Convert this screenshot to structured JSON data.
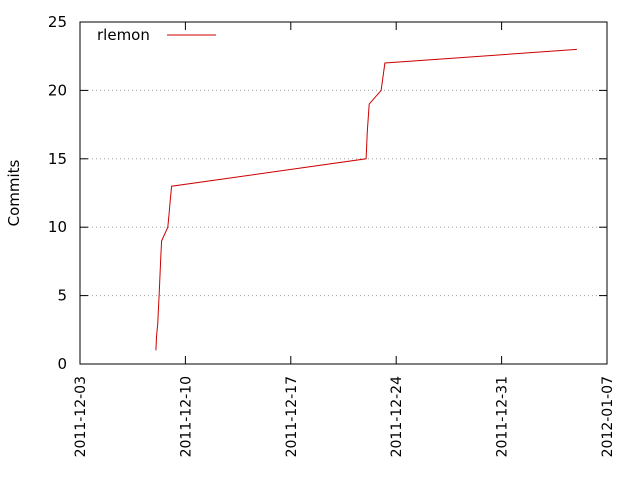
{
  "chart_data": {
    "type": "line",
    "title": "",
    "xlabel": "",
    "ylabel": "Commits",
    "x_axis_type": "date",
    "xlim": [
      "2011-12-03",
      "2012-01-07"
    ],
    "ylim": [
      0,
      25
    ],
    "x_ticks": [
      "2011-12-03",
      "2011-12-10",
      "2011-12-17",
      "2011-12-24",
      "2011-12-31",
      "2012-01-07"
    ],
    "y_ticks": [
      0,
      5,
      10,
      15,
      20,
      25
    ],
    "grid": "horizontal dotted",
    "legend_position": "top-left",
    "series": [
      {
        "name": "rlemon",
        "color": "#cc0000",
        "points": [
          [
            "2011-12-08T01:00",
            1
          ],
          [
            "2011-12-08T02:00",
            2
          ],
          [
            "2011-12-08T04:00",
            3
          ],
          [
            "2011-12-08T05:00",
            4
          ],
          [
            "2011-12-08T06:00",
            5
          ],
          [
            "2011-12-08T07:00",
            6
          ],
          [
            "2011-12-08T08:00",
            7
          ],
          [
            "2011-12-08T09:00",
            8
          ],
          [
            "2011-12-08T10:00",
            9
          ],
          [
            "2011-12-08T20:00",
            10
          ],
          [
            "2011-12-08T22:00",
            11
          ],
          [
            "2011-12-09T00:00",
            12
          ],
          [
            "2011-12-09T02:00",
            13
          ],
          [
            "2011-12-22T00:00",
            15
          ],
          [
            "2011-12-22T01:00",
            16
          ],
          [
            "2011-12-22T02:00",
            17
          ],
          [
            "2011-12-22T05:00",
            19
          ],
          [
            "2011-12-23T00:00",
            20
          ],
          [
            "2011-12-23T03:00",
            21
          ],
          [
            "2011-12-23T06:00",
            22
          ],
          [
            "2012-01-05T00:00",
            23
          ]
        ]
      }
    ]
  }
}
